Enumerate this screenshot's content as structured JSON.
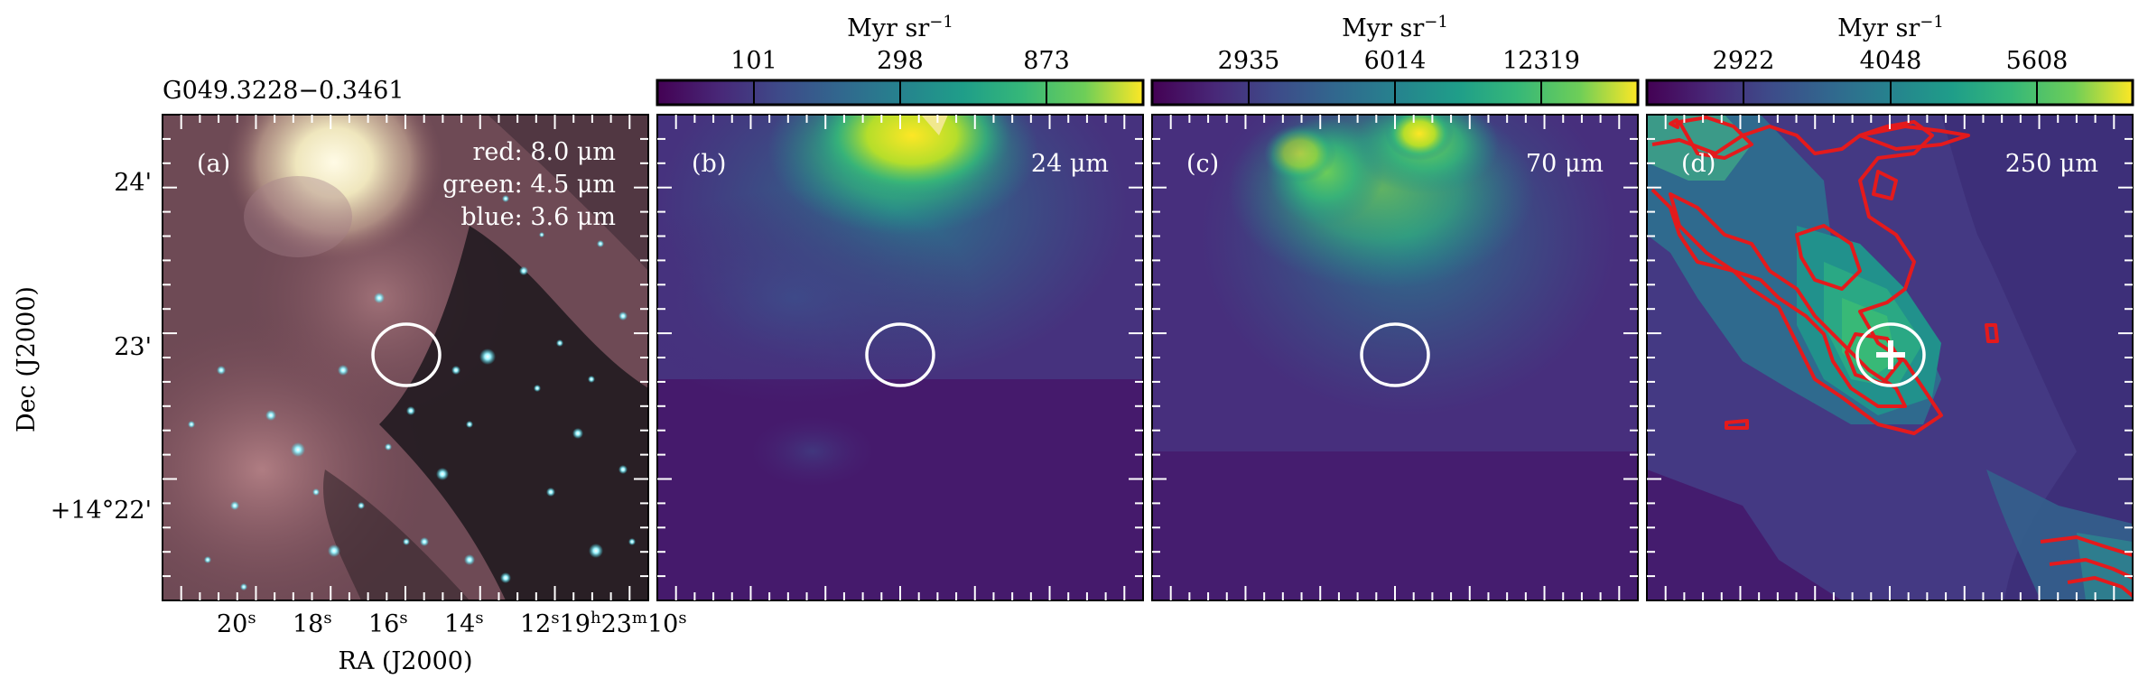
{
  "figure": {
    "source_label": "G049.3228−0.3461",
    "y_axis_label": "Dec (J2000)",
    "x_axis_label": "RA (J2000)",
    "dec_ticks": [
      "24'",
      "23'",
      "+14°22'"
    ],
    "ra_ticks": [
      "20",
      "18",
      "16",
      "14",
      "12",
      "19",
      "23",
      "10"
    ],
    "ra_tick_suffixes": [
      "s",
      "s",
      "s",
      "s",
      "s",
      "h",
      "m",
      "s"
    ]
  },
  "panels": [
    {
      "letter": "(a)",
      "legend": [
        "red: 8.0 μm",
        "green: 4.5 μm",
        "blue: 3.6 μm"
      ],
      "has_colorbar": false
    },
    {
      "letter": "(b)",
      "wavelength": "24 μm",
      "colorbar_unit": "Myr sr",
      "colorbar_exp": "−1",
      "colorbar_ticks": [
        "101",
        "298",
        "873"
      ]
    },
    {
      "letter": "(c)",
      "wavelength": "70 μm",
      "colorbar_unit": "Myr sr",
      "colorbar_exp": "−1",
      "colorbar_ticks": [
        "2935",
        "6014",
        "12319"
      ]
    },
    {
      "letter": "(d)",
      "wavelength": "250 μm",
      "colorbar_unit": "Myr sr",
      "colorbar_exp": "−1",
      "colorbar_ticks": [
        "2922",
        "4048",
        "5608"
      ]
    }
  ],
  "colors": {
    "viridis_low": "#440154",
    "viridis_mid": "#21918c",
    "viridis_high": "#fde725",
    "contour": "#e41a1c",
    "marker": "#ffffff"
  }
}
